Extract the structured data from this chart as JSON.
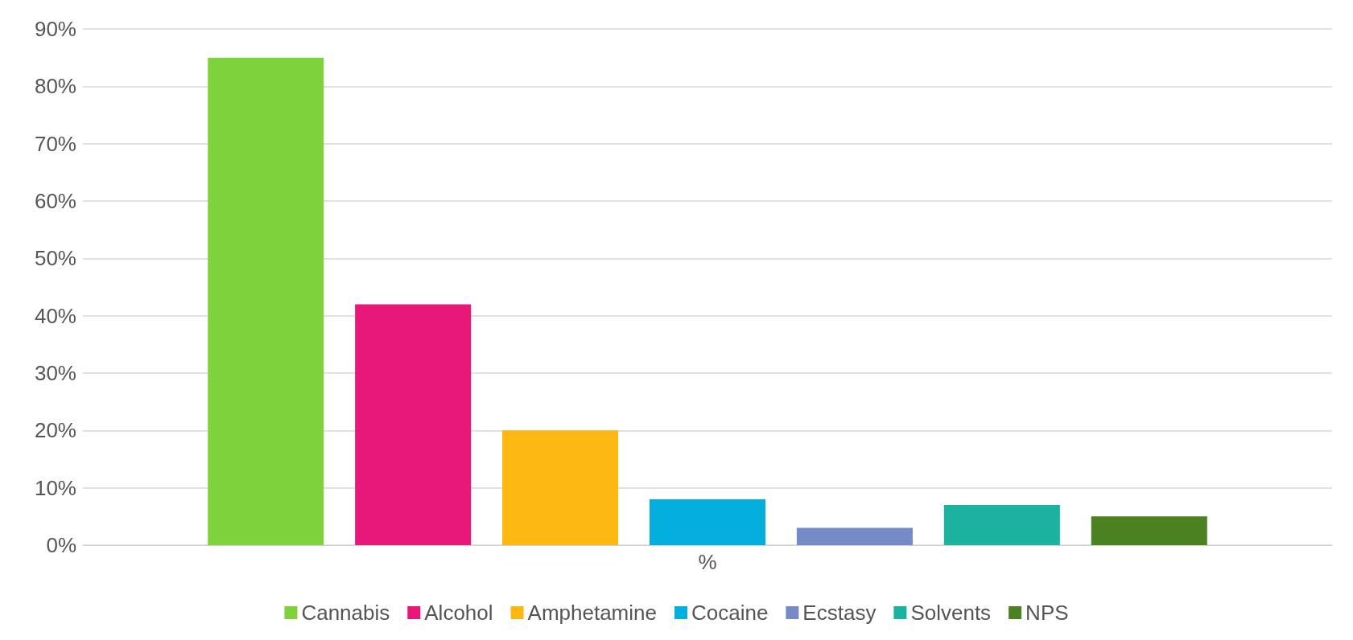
{
  "chart_data": {
    "type": "bar",
    "categories": [
      "%"
    ],
    "series": [
      {
        "name": "Cannabis",
        "color": "#7ed23b",
        "values": [
          85
        ]
      },
      {
        "name": "Alcohol",
        "color": "#e8177a",
        "values": [
          42
        ]
      },
      {
        "name": "Amphetamine",
        "color": "#fdb713",
        "values": [
          20
        ]
      },
      {
        "name": "Cocaine",
        "color": "#04aedd",
        "values": [
          8
        ]
      },
      {
        "name": "Ecstasy",
        "color": "#768bc6",
        "values": [
          3
        ]
      },
      {
        "name": "Solvents",
        "color": "#1bb39f",
        "values": [
          7
        ]
      },
      {
        "name": "NPS",
        "color": "#4c8121",
        "values": [
          5
        ]
      }
    ],
    "ylim": [
      0,
      90
    ],
    "yticks": [
      {
        "value": 0,
        "label": "0%"
      },
      {
        "value": 10,
        "label": "10%"
      },
      {
        "value": 20,
        "label": "20%"
      },
      {
        "value": 30,
        "label": "30%"
      },
      {
        "value": 40,
        "label": "40%"
      },
      {
        "value": 50,
        "label": "50%"
      },
      {
        "value": 60,
        "label": "60%"
      },
      {
        "value": 70,
        "label": "70%"
      },
      {
        "value": 80,
        "label": "80%"
      },
      {
        "value": 90,
        "label": "90%"
      }
    ],
    "grid": "y",
    "legend": "bottom"
  }
}
